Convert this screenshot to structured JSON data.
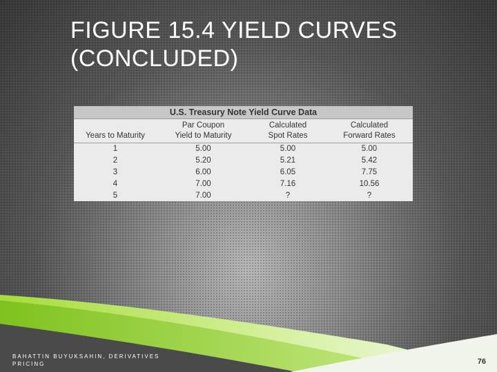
{
  "slide": {
    "title_line1": "FIGURE 15.4 YIELD CURVES",
    "title_line2": "(CONCLUDED)",
    "footer_line1": "BAHATTIN BUYUKSAHIN, DERIVATIVES",
    "footer_line2": "PRICING",
    "page_number": "76"
  },
  "table": {
    "title": "U.S. Treasury Note Yield Curve Data",
    "columns": [
      {
        "line1": "",
        "line2": "Years to Maturity"
      },
      {
        "line1": "Par Coupon",
        "line2": "Yield to Maturity"
      },
      {
        "line1": "Calculated",
        "line2": "Spot Rates"
      },
      {
        "line1": "Calculated",
        "line2": "Forward Rates"
      }
    ],
    "rows": [
      [
        "1",
        "5.00",
        "5.00",
        "5.00"
      ],
      [
        "2",
        "5.20",
        "5.21",
        "5.42"
      ],
      [
        "3",
        "6.00",
        "6.05",
        "7.75"
      ],
      [
        "4",
        "7.00",
        "7.16",
        "10.56"
      ],
      [
        "5",
        "7.00",
        "?",
        "?"
      ]
    ]
  },
  "colors": {
    "background": "#5a5a5a",
    "accent_green": "#8fd12a",
    "table_header": "#c7c7c7"
  }
}
